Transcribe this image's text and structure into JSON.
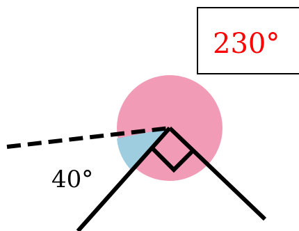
{
  "diagram": {
    "reflex_angle_label": "230°",
    "acute_angle_label": "40°",
    "colors": {
      "reflex_angle": "#f29bb6",
      "acute_angle": "#9fcde0",
      "label_red": "#ff0000",
      "lines": "#000000"
    }
  }
}
